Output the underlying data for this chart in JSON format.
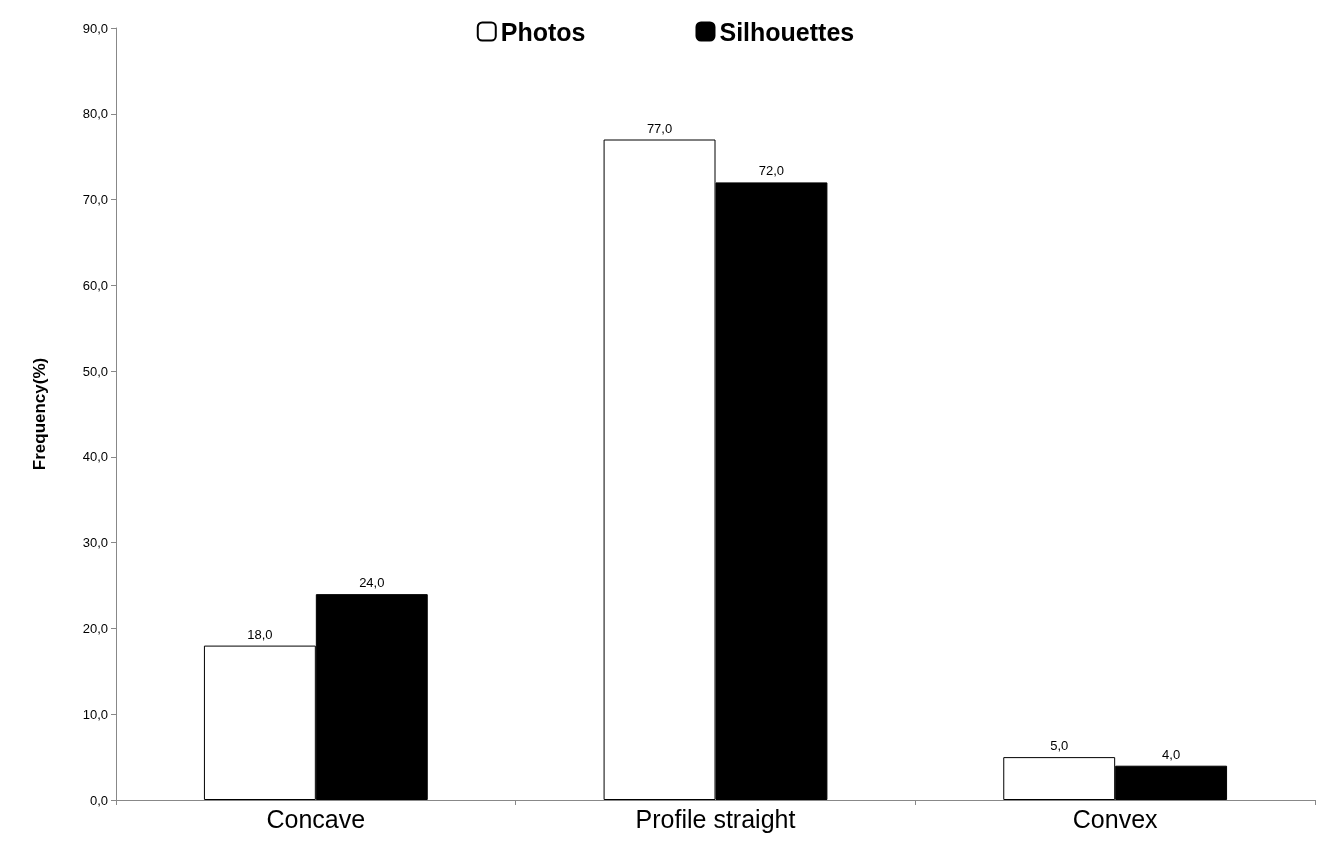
{
  "chart_data": {
    "type": "bar",
    "ylabel": "Frequency(%)",
    "categories": [
      "Concave",
      "Profile straight",
      "Convex"
    ],
    "series": [
      {
        "name": "Photos",
        "color": "#ffffff",
        "values": [
          18,
          77,
          5
        ],
        "value_labels": [
          "18,0",
          "77,0",
          "5,0"
        ]
      },
      {
        "name": "Silhouettes",
        "color": "#000000",
        "values": [
          24,
          72,
          4
        ],
        "value_labels": [
          "24,0",
          "72,0",
          "4,0"
        ]
      }
    ],
    "ylim": [
      0,
      90
    ],
    "yticks": [
      {
        "value": 0,
        "label": "0,0"
      },
      {
        "value": 10,
        "label": "10,0"
      },
      {
        "value": 20,
        "label": "20,0"
      },
      {
        "value": 30,
        "label": "30,0"
      },
      {
        "value": 40,
        "label": "40,0"
      },
      {
        "value": 50,
        "label": "50,0"
      },
      {
        "value": 60,
        "label": "60,0"
      },
      {
        "value": 70,
        "label": "70,0"
      },
      {
        "value": 80,
        "label": "80,0"
      },
      {
        "value": 90,
        "label": "90,0"
      }
    ],
    "grid": false,
    "legend": "top"
  }
}
